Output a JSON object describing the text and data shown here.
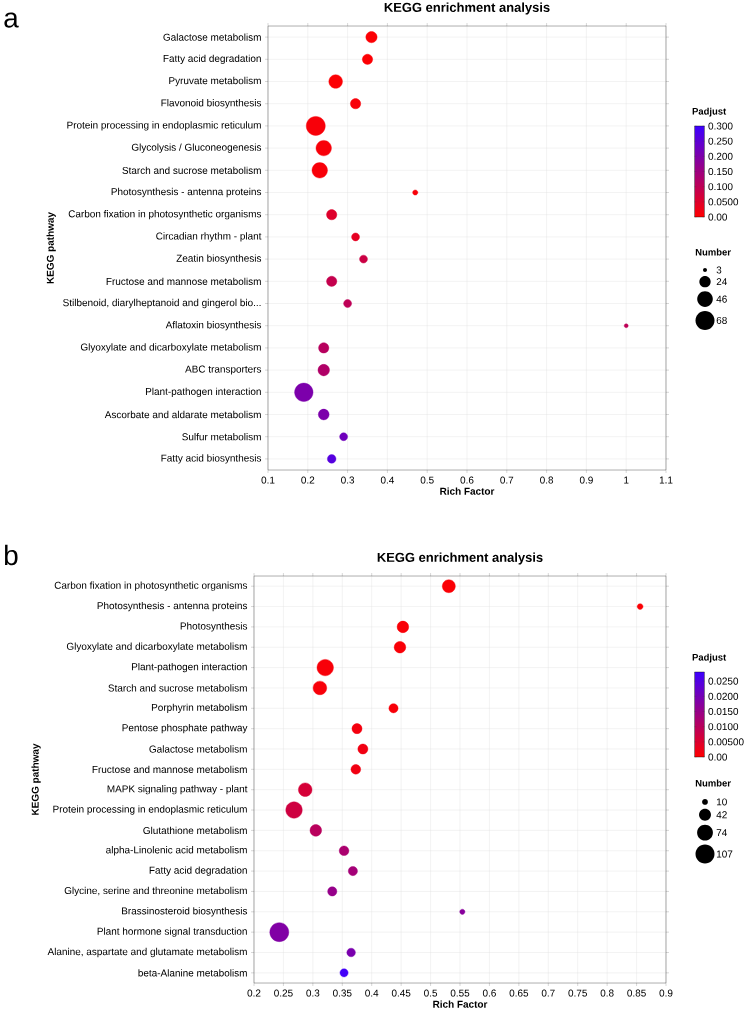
{
  "chart_data": [
    {
      "type": "bubble",
      "title": "KEGG enrichment analysis",
      "xlabel": "Rich Factor",
      "ylabel": "KEGG pathway",
      "clabel": "Padjust",
      "legend_title": "Number",
      "annotations": [
        "a"
      ],
      "orientation": "horizontal",
      "grid": true,
      "categories": [
        "Galactose metabolism",
        "Fatty acid degradation",
        "Pyruvate metabolism",
        "Flavonoid biosynthesis",
        "Protein processing in endoplasmic reticulum",
        "Glycolysis / Gluconeogenesis",
        "Starch and sucrose metabolism",
        "Photosynthesis - antenna proteins",
        "Carbon fixation in photosynthetic organisms",
        "Circadian rhythm - plant",
        "Zeatin biosynthesis",
        "Fructose and mannose metabolism",
        "Stilbenoid, diarylheptanoid and gingerol bio...",
        "Aflatoxin biosynthesis",
        "Glyoxylate and dicarboxylate metabolism",
        "ABC transporters",
        "Plant-pathogen interaction",
        "Ascorbate and aldarate metabolism",
        "Sulfur metabolism",
        "Fatty acid biosynthesis"
      ],
      "values": [
        0.36,
        0.35,
        0.27,
        0.32,
        0.22,
        0.24,
        0.23,
        0.47,
        0.26,
        0.32,
        0.34,
        0.26,
        0.3,
        1.0,
        0.24,
        0.24,
        0.19,
        0.24,
        0.29,
        0.26
      ],
      "sizes": [
        24,
        20,
        35,
        20,
        68,
        45,
        45,
        5,
        20,
        12,
        12,
        20,
        12,
        3,
        20,
        25,
        64,
        22,
        12,
        14
      ],
      "cvalues": [
        0.005,
        0.005,
        0.005,
        0.01,
        0.01,
        0.01,
        0.01,
        0.01,
        0.05,
        0.04,
        0.08,
        0.09,
        0.1,
        0.1,
        0.11,
        0.12,
        0.2,
        0.2,
        0.22,
        0.26
      ],
      "size_legend": [
        3,
        24,
        46,
        68
      ],
      "clim": [
        0,
        0.3
      ],
      "cticks": [
        {
          "value": 0,
          "label": "0.00"
        },
        {
          "value": 0.05,
          "label": "0.0500"
        },
        {
          "value": 0.1,
          "label": "0.100"
        },
        {
          "value": 0.15,
          "label": "0.150"
        },
        {
          "value": 0.2,
          "label": "0.200"
        },
        {
          "value": 0.25,
          "label": "0.250"
        },
        {
          "value": 0.3,
          "label": "0.300"
        }
      ],
      "xlim": [
        0.1,
        1.1
      ],
      "xticks": [
        0.1,
        0.2,
        0.3,
        0.4,
        0.5,
        0.6,
        0.7,
        0.8,
        0.9,
        1,
        1.1
      ]
    },
    {
      "type": "bubble",
      "title": "KEGG enrichment analysis",
      "xlabel": "Rich Factor",
      "ylabel": "KEGG pathway",
      "clabel": "Padjust",
      "legend_title": "Number",
      "annotations": [
        "b"
      ],
      "orientation": "horizontal",
      "grid": true,
      "categories": [
        "Carbon fixation in photosynthetic organisms",
        "Photosynthesis - antenna proteins",
        "Photosynthesis",
        "Glyoxylate and dicarboxylate metabolism",
        "Plant-pathogen interaction",
        "Starch and sucrose metabolism",
        "Porphyrin metabolism",
        "Pentose phosphate pathway",
        "Galactose metabolism",
        "Fructose and mannose metabolism",
        "MAPK signaling pathway - plant",
        "Protein processing in endoplasmic reticulum",
        "Glutathione metabolism",
        "alpha-Linolenic acid metabolism",
        "Fatty acid degradation",
        "Glycine, serine and threonine metabolism",
        "Brassinosteroid biosynthesis",
        "Plant hormone signal transduction",
        "Alanine, aspartate and glutamate metabolism",
        "beta-Alanine metabolism"
      ],
      "values": [
        0.531,
        0.856,
        0.453,
        0.448,
        0.321,
        0.312,
        0.437,
        0.375,
        0.385,
        0.373,
        0.287,
        0.268,
        0.305,
        0.353,
        0.368,
        0.333,
        0.554,
        0.243,
        0.365,
        0.353
      ],
      "sizes": [
        50,
        10,
        40,
        40,
        80,
        55,
        25,
        30,
        30,
        28,
        55,
        80,
        40,
        28,
        25,
        25,
        8,
        107,
        22,
        20
      ],
      "cvalues": [
        0.0005,
        0.0005,
        0.0008,
        0.0008,
        0.001,
        0.001,
        0.001,
        0.0015,
        0.002,
        0.002,
        0.006,
        0.007,
        0.01,
        0.012,
        0.013,
        0.015,
        0.017,
        0.018,
        0.019,
        0.027
      ],
      "size_legend": [
        10,
        42,
        74,
        107
      ],
      "clim": [
        0,
        0.028
      ],
      "cticks": [
        {
          "value": 0,
          "label": "0.00"
        },
        {
          "value": 0.005,
          "label": "0.00500"
        },
        {
          "value": 0.01,
          "label": "0.0100"
        },
        {
          "value": 0.015,
          "label": "0.0150"
        },
        {
          "value": 0.02,
          "label": "0.0200"
        },
        {
          "value": 0.025,
          "label": "0.0250"
        }
      ],
      "xlim": [
        0.2,
        0.9
      ],
      "xticks": [
        0.2,
        0.25,
        0.3,
        0.35,
        0.4,
        0.45,
        0.5,
        0.55,
        0.6,
        0.65,
        0.7,
        0.75,
        0.8,
        0.85,
        0.9
      ]
    }
  ]
}
